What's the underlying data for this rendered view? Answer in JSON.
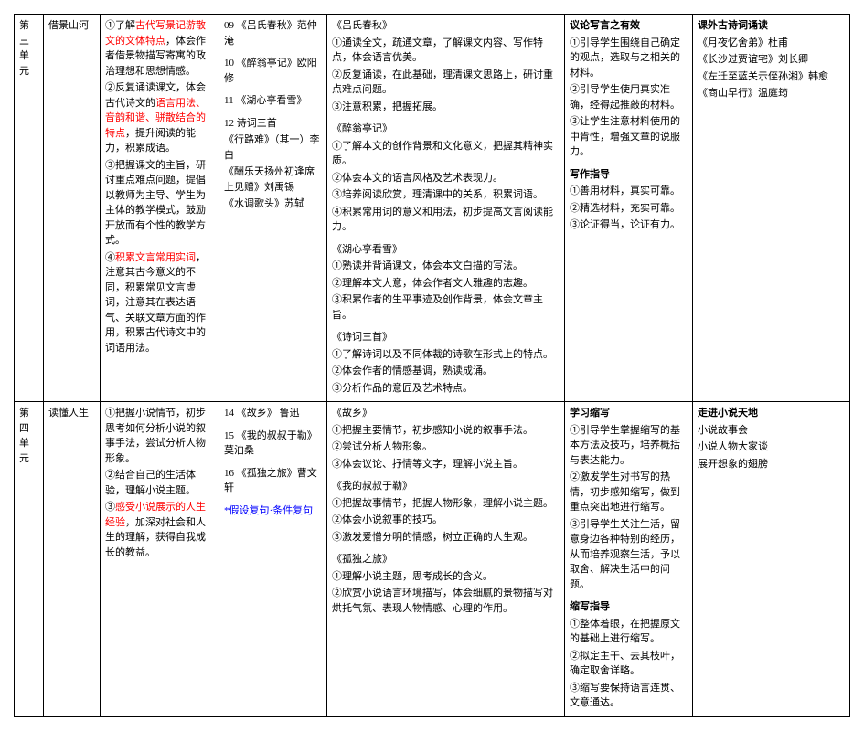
{
  "table": {
    "rows": [
      {
        "unit_lines": [
          "第三",
          "单元"
        ],
        "toc": "借景山河",
        "objectives": {
          "o1_pre": "①了解",
          "o1_red": "古代写景记游散文的文体特点",
          "o1_post": "，体会作者借景物描写寄寓的政治理想和思想情感。",
          "o2_pre": "②反复诵读课文，体会古代诗文的",
          "o2_red": "语言用法、音韵和谐、骈散结合的特点",
          "o2_post": "，提升阅读的能力，积累成语。",
          "o3": "③把握课文的主旨，研讨重点难点问题，提倡以教师为主导、学生为主体的教学模式，鼓励开放而有个性的教学方式。",
          "o4_pre": "④",
          "o4_red": "积累文言常用实词",
          "o4_post": "，注意其古今意义的不同，积累常见文言虚词，注意其在表达语气、关联文章方面的作用，积累古代诗文中的词语用法。"
        },
        "texts": {
          "t1": "09 《吕氏春秋》范仲淹",
          "t2": "10 《醉翁亭记》欧阳修",
          "t3": "11 《湖心亭看雪》",
          "t4": "12 诗词三首",
          "t4a": "《行路难》（其一）李白",
          "t4b": "《酬乐天扬州初逢席上见赠》刘禹锡",
          "t4c": "《水调歌头》苏轼"
        },
        "focus": {
          "b1_title": "《吕氏春秋》",
          "b1_1": "①通读全文，疏通文章，了解课文内容、写作特点，体会语言优美。",
          "b1_2": "②反复诵读，在此基础，理清课文思路上，研讨重点难点问题。",
          "b1_3": "③注意积累，把握拓展。",
          "b2_title": "《醉翁亭记》",
          "b2_1": "①了解本文的创作背景和文化意义，把握其精神实质。",
          "b2_2": "②体会本文的语言风格及艺术表现力。",
          "b2_3": "③培养阅读欣赏，理清课中的关系，积累词语。",
          "b2_4": "④积累常用词的意义和用法，初步提高文言阅读能力。",
          "b3_title": "《湖心亭看雪》",
          "b3_1": "①熟读并背诵课文，体会本文白描的写法。",
          "b3_2": "②理解本文大意，体会作者文人雅趣的志趣。",
          "b3_3": "③积累作者的生平事迹及创作背景，体会文章主旨。",
          "b4_title": "《诗词三首》",
          "b4_1": "①了解诗词以及不同体裁的诗歌在形式上的特点。",
          "b4_2": "②体会作者的情感基调，熟读成诵。",
          "b4_3": "③分析作品的意匠及艺术特点。"
        },
        "writing": {
          "t1": "议论写言之有效",
          "t1_1": "①引导学生围绕自己确定的观点，选取与之相关的材料。",
          "t1_2": "②引导学生使用真实准确，经得起推敲的材料。",
          "t1_3": "③让学生注意材料使用的中肯性，增强文章的说服力。",
          "t2": "写作指导",
          "t2_1": "①善用材料，真实可靠。",
          "t2_2": "②精选材料，充实可靠。",
          "t2_3": "③论证得当，论证有力。"
        },
        "ext": {
          "t1": "课外古诗词诵读",
          "l1": "《月夜忆舍弟》杜甫",
          "l2": "《长沙过贾谊宅》刘长卿",
          "l3": "《左迁至蓝关示侄孙湘》韩愈",
          "l4": "《商山早行》温庭筠"
        }
      },
      {
        "unit_lines": [
          "第四",
          "单元"
        ],
        "toc": "读懂人生",
        "objectives": {
          "o1": "①把握小说情节，初步思考如何分析小说的叙事手法，尝试分析人物形象。",
          "o2": "②结合自己的生活体验，理解小说主题。",
          "o3_pre": "③",
          "o3_red": "感受小说展示的人生经验",
          "o3_post": "，加深对社会和人生的理解，获得自我成长的教益。"
        },
        "texts": {
          "t1": "14 《故乡》 鲁迅",
          "t2": "15 《我的叔叔于勒》莫泊桑",
          "t3": "16 《孤独之旅》曹文轩",
          "t4_blue": "*假设复句·条件复句"
        },
        "focus": {
          "b1_title": "《故乡》",
          "b1_1": "①把握主要情节，初步感知小说的叙事手法。",
          "b1_2": "②尝试分析人物形象。",
          "b1_3": "③体会议论、抒情等文字，理解小说主旨。",
          "b2_title": "《我的叔叔于勒》",
          "b2_1": "①把握故事情节，把握人物形象，理解小说主题。",
          "b2_2": "②体会小说叙事的技巧。",
          "b2_3": "③激发爱憎分明的情感，树立正确的人生观。",
          "b3_title": "《孤独之旅》",
          "b3_1": "①理解小说主题，思考成长的含义。",
          "b3_2": "②欣赏小说语言环境描写，体会细腻的景物描写对烘托气氛、表现人物情感、心理的作用。"
        },
        "writing": {
          "t1": "学习缩写",
          "t1_1": "①引导学生掌握缩写的基本方法及技巧，培养概括与表达能力。",
          "t1_2": "②激发学生对书写的热情，初步感知缩写，做到重点突出地进行缩写。",
          "t1_3": "③引导学生关注生活，留意身边各种特别的经历，从而培养观察生活，予以取舍、解决生活中的问题。",
          "t2": "缩写指导",
          "t2_1": "①整体着眼，在把握原文的基础上进行缩写。",
          "t2_2": "②拟定主干、去其枝叶，确定取舍详略。",
          "t2_3": "③缩写要保持语言连贯、文意通达。"
        },
        "ext": {
          "t1": "走进小说天地",
          "l1": "小说故事会",
          "l2": "小说人物大家谈",
          "l3": "展开想象的翅膀"
        }
      }
    ]
  }
}
